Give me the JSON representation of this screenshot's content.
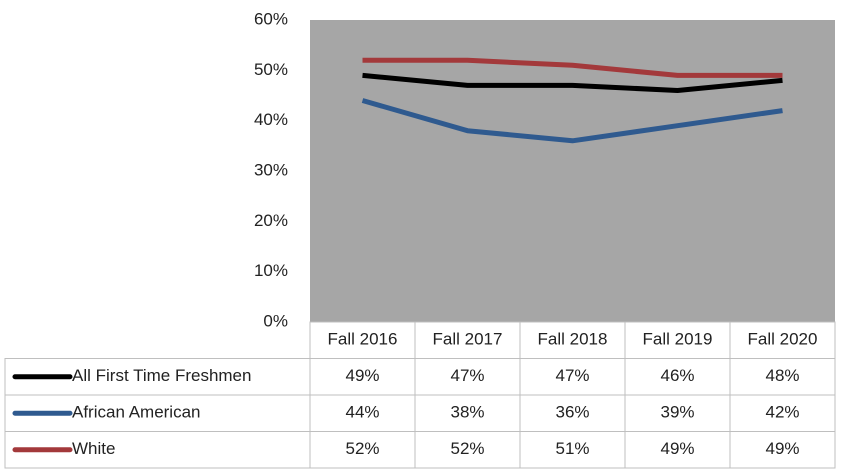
{
  "chart_data": {
    "type": "line",
    "categories": [
      "Fall 2016",
      "Fall 2017",
      "Fall 2018",
      "Fall 2019",
      "Fall 2020"
    ],
    "series": [
      {
        "name": "All First Time Freshmen",
        "color": "#000000",
        "values": [
          49,
          47,
          47,
          46,
          48
        ],
        "value_labels": [
          "49%",
          "47%",
          "47%",
          "46%",
          "48%"
        ]
      },
      {
        "name": "African American",
        "color": "#2f5a8f",
        "values": [
          44,
          38,
          36,
          39,
          42
        ],
        "value_labels": [
          "44%",
          "38%",
          "36%",
          "39%",
          "42%"
        ]
      },
      {
        "name": "White",
        "color": "#a3393b",
        "values": [
          52,
          52,
          51,
          49,
          49
        ],
        "value_labels": [
          "52%",
          "52%",
          "51%",
          "49%",
          "49%"
        ]
      }
    ],
    "ylim": [
      0,
      60
    ],
    "yticks": [
      {
        "value": 0,
        "label": "0%"
      },
      {
        "value": 10,
        "label": "10%"
      },
      {
        "value": 20,
        "label": "20%"
      },
      {
        "value": 30,
        "label": "30%"
      },
      {
        "value": 40,
        "label": "40%"
      },
      {
        "value": 50,
        "label": "50%"
      },
      {
        "value": 60,
        "label": "60%"
      }
    ],
    "plot_background": "#a6a6a6",
    "grid": false
  }
}
